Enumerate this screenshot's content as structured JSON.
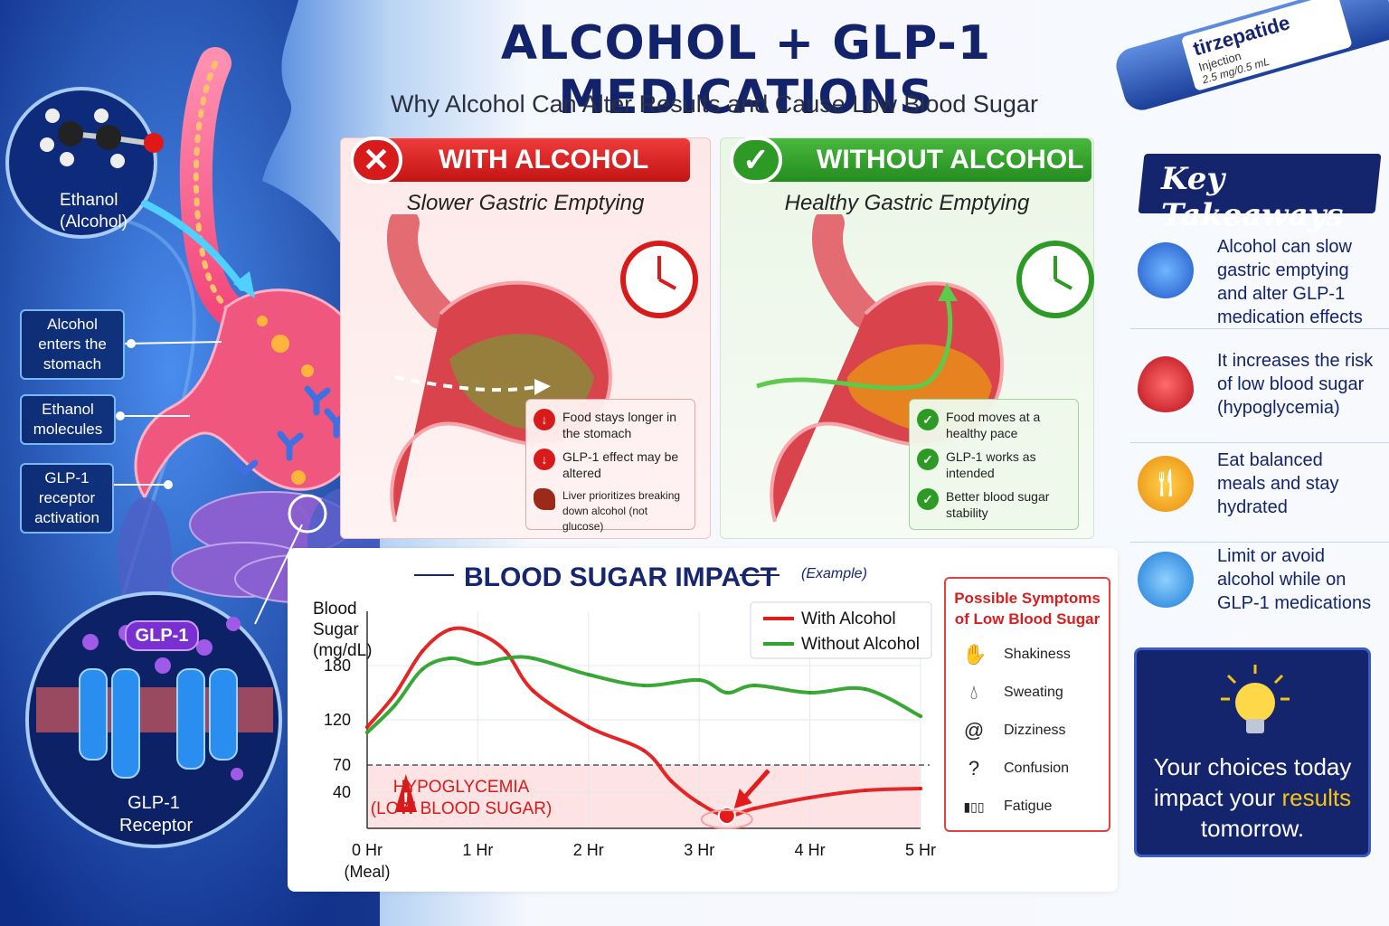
{
  "title": "ALCOHOL + GLP-1 MEDICATIONS",
  "subtitle": "Why Alcohol Can Alter Results and Cause Low Blood Sugar",
  "left": {
    "ethanol_label": "Ethanol (Alcohol)",
    "callouts": [
      "Alcohol enters the stomach",
      "Ethanol molecules",
      "GLP-1 receptor activation"
    ],
    "glp1_label": "GLP-1",
    "receptor_label": "GLP-1 Receptor"
  },
  "pen": {
    "name": "tirzepatide",
    "sub": "Injection",
    "dose": "2.5 mg/0.5 mL"
  },
  "with_alcohol": {
    "header": "WITH ALCOHOL",
    "subtitle": "Slower Gastric Emptying",
    "facts": [
      "Food stays longer in the stomach",
      "GLP-1 effect may be altered",
      "Liver prioritizes breaking down alcohol (not glucose)"
    ]
  },
  "without_alcohol": {
    "header": "WITHOUT ALCOHOL",
    "subtitle": "Healthy Gastric Emptying",
    "facts": [
      "Food moves at a healthy pace",
      "GLP-1 works as intended",
      "Better blood sugar stability"
    ]
  },
  "chart_title": "BLOOD SUGAR IMPACT",
  "chart_note": "(Example)",
  "chart_data": {
    "type": "line",
    "ylabel": "Blood Sugar (mg/dL)",
    "x_labels": [
      "0 Hr (Meal)",
      "1 Hr",
      "2 Hr",
      "3 Hr",
      "4 Hr",
      "5 Hr"
    ],
    "y_ticks": [
      40,
      70,
      120,
      180
    ],
    "threshold": 70,
    "threshold_label": "HYPOGLYCEMIA (LOW BLOOD SUGAR)",
    "series": [
      {
        "name": "With Alcohol",
        "color": "#e21b1b",
        "points": [
          [
            0,
            112
          ],
          [
            0.25,
            148
          ],
          [
            0.5,
            196
          ],
          [
            0.75,
            220
          ],
          [
            1.0,
            216
          ],
          [
            1.25,
            196
          ],
          [
            1.5,
            152
          ],
          [
            2.0,
            112
          ],
          [
            2.5,
            86
          ],
          [
            2.75,
            52
          ],
          [
            3.0,
            28
          ],
          [
            3.25,
            14
          ],
          [
            3.5,
            22
          ],
          [
            4.0,
            34
          ],
          [
            4.5,
            42
          ],
          [
            5.0,
            44
          ]
        ]
      },
      {
        "name": "Without Alcohol",
        "color": "#2fa32b",
        "points": [
          [
            0,
            106
          ],
          [
            0.25,
            136
          ],
          [
            0.5,
            176
          ],
          [
            0.75,
            188
          ],
          [
            1.0,
            182
          ],
          [
            1.25,
            188
          ],
          [
            1.5,
            188
          ],
          [
            2.0,
            170
          ],
          [
            2.5,
            158
          ],
          [
            3.0,
            164
          ],
          [
            3.25,
            150
          ],
          [
            3.5,
            158
          ],
          [
            4.0,
            150
          ],
          [
            4.5,
            154
          ],
          [
            5.0,
            124
          ]
        ]
      }
    ]
  },
  "symptoms": {
    "title": "Possible Symptoms of Low Blood Sugar",
    "items": [
      {
        "label": "Shakiness",
        "icon": "hand-shake-icon"
      },
      {
        "label": "Sweating",
        "icon": "droplet-icon"
      },
      {
        "label": "Dizziness",
        "icon": "spiral-icon"
      },
      {
        "label": "Confusion",
        "icon": "question-icon"
      },
      {
        "label": "Fatigue",
        "icon": "battery-low-icon"
      }
    ]
  },
  "key_takeaways": {
    "title": "Key Takeaways",
    "items": [
      "Alcohol can slow gastric emptying and alter GLP-1 medication effects",
      "It increases the risk of low blood sugar (hypoglycemia)",
      "Eat balanced meals and stay hydrated",
      "Limit or avoid alcohol while on GLP-1 medications"
    ]
  },
  "cta": {
    "line1": "Your choices today",
    "line2a": "impact your ",
    "highlight": "results",
    "line3": "tomorrow."
  },
  "colors": {
    "navy": "#14246d",
    "red": "#d71a1a",
    "green": "#2d9a26",
    "gold": "#f6c413"
  }
}
